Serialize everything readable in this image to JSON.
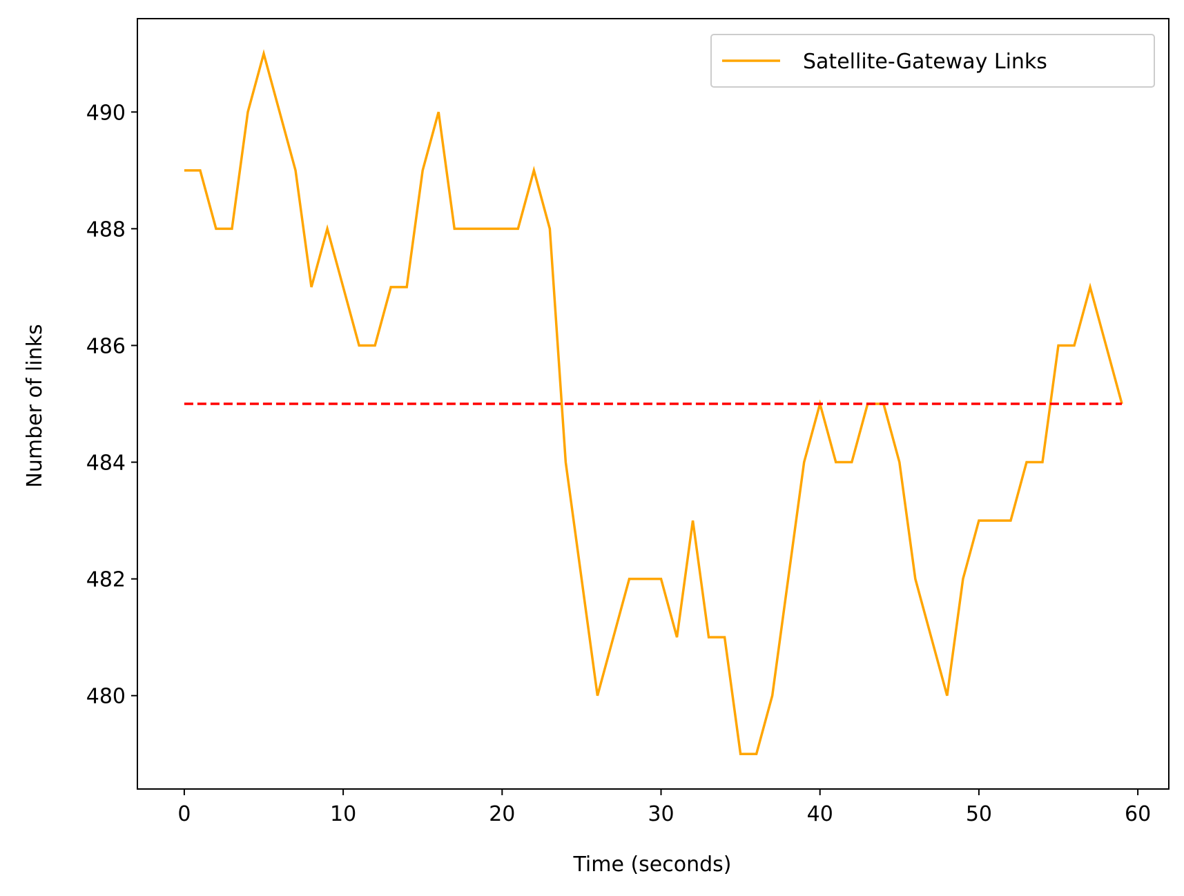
{
  "chart_data": {
    "type": "line",
    "title": "",
    "xlabel": "Time (seconds)",
    "ylabel": "Number of links",
    "xlim": [
      -2.95,
      61.95
    ],
    "ylim": [
      478.4,
      491.6
    ],
    "xticks": [
      0,
      10,
      20,
      30,
      40,
      50,
      60
    ],
    "yticks": [
      480,
      482,
      484,
      486,
      488,
      490
    ],
    "grid": false,
    "legend_position": "top-right",
    "series": [
      {
        "name": "Satellite-Gateway Links",
        "color": "#FFA500",
        "style": "solid",
        "x": [
          0,
          1,
          2,
          3,
          4,
          5,
          6,
          7,
          8,
          9,
          10,
          11,
          12,
          13,
          14,
          15,
          16,
          17,
          18,
          19,
          20,
          21,
          22,
          23,
          24,
          25,
          26,
          27,
          28,
          29,
          30,
          31,
          32,
          33,
          34,
          35,
          36,
          37,
          38,
          39,
          40,
          41,
          42,
          43,
          44,
          45,
          46,
          47,
          48,
          49,
          50,
          51,
          52,
          53,
          54,
          55,
          56,
          57,
          58,
          59
        ],
        "y": [
          489,
          489,
          488,
          488,
          490,
          491,
          490,
          489,
          487,
          488,
          487,
          486,
          486,
          487,
          487,
          489,
          490,
          488,
          488,
          488,
          488,
          488,
          489,
          488,
          484,
          482,
          480,
          481,
          482,
          482,
          482,
          481,
          483,
          481,
          481,
          479,
          479,
          480,
          482,
          484,
          485,
          484,
          484,
          485,
          485,
          484,
          482,
          481,
          480,
          482,
          483,
          483,
          483,
          484,
          484,
          486,
          486,
          487,
          486,
          485
        ]
      },
      {
        "color": "#FF0000",
        "style": "dashed",
        "x": [
          0,
          59
        ],
        "y": [
          485,
          485
        ]
      }
    ]
  }
}
